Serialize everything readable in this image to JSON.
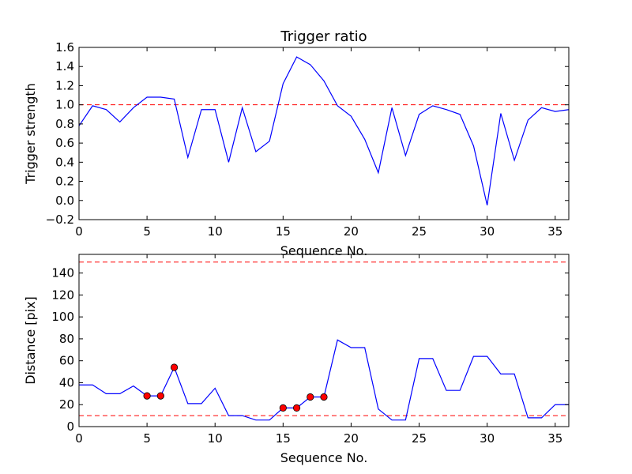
{
  "chart_data": [
    {
      "type": "line",
      "title": "Trigger ratio",
      "xlabel": "Sequence No.",
      "ylabel": "Trigger strength",
      "xlim": [
        0,
        36
      ],
      "ylim": [
        -0.2,
        1.6
      ],
      "xticks": [
        0,
        5,
        10,
        15,
        20,
        25,
        30,
        35
      ],
      "yticks": [
        -0.2,
        0.0,
        0.2,
        0.4,
        0.6,
        0.8,
        1.0,
        1.2,
        1.4,
        1.6
      ],
      "ytick_labels": [
        "−0.2",
        "0.0",
        "0.2",
        "0.4",
        "0.6",
        "0.8",
        "1.0",
        "1.2",
        "1.4",
        "1.6"
      ],
      "grid": false,
      "series": [
        {
          "color": "#0000ff",
          "x": [
            0,
            1,
            2,
            3,
            4,
            5,
            6,
            7,
            8,
            9,
            10,
            11,
            12,
            13,
            14,
            15,
            16,
            17,
            18,
            19,
            20,
            21,
            22,
            23,
            24,
            25,
            26,
            27,
            28,
            29,
            30,
            31,
            32,
            33,
            34,
            35,
            36
          ],
          "values": [
            0.78,
            0.99,
            0.95,
            0.82,
            0.97,
            1.08,
            1.08,
            1.06,
            0.45,
            0.95,
            0.95,
            0.4,
            0.97,
            0.51,
            0.62,
            1.22,
            1.5,
            1.42,
            1.25,
            0.99,
            0.88,
            0.64,
            0.29,
            0.97,
            0.47,
            0.9,
            0.99,
            0.95,
            0.9,
            0.57,
            -0.05,
            0.91,
            0.42,
            0.84,
            0.97,
            0.93,
            0.95
          ]
        }
      ],
      "hlines": [
        {
          "y": 1.0,
          "color": "#ff0000",
          "style": "dashed"
        }
      ]
    },
    {
      "type": "line",
      "title": "",
      "xlabel": "Sequence No.",
      "ylabel": "Distance [pix]",
      "xlim": [
        0,
        36
      ],
      "ylim": [
        0,
        157
      ],
      "xticks": [
        0,
        5,
        10,
        15,
        20,
        25,
        30,
        35
      ],
      "yticks": [
        0,
        20,
        40,
        60,
        80,
        100,
        120,
        140
      ],
      "grid": false,
      "series": [
        {
          "color": "#0000ff",
          "x": [
            0,
            1,
            2,
            3,
            4,
            5,
            6,
            7,
            8,
            9,
            10,
            11,
            12,
            13,
            14,
            15,
            16,
            17,
            18,
            19,
            20,
            21,
            22,
            23,
            24,
            25,
            26,
            27,
            28,
            29,
            30,
            31,
            32,
            33,
            34,
            35,
            36
          ],
          "values": [
            38,
            38,
            30,
            30,
            37,
            28,
            28,
            54,
            21,
            21,
            35,
            10,
            10,
            6,
            6,
            17,
            17,
            27,
            27,
            79,
            72,
            72,
            16,
            6,
            6,
            62,
            62,
            33,
            33,
            64,
            64,
            48,
            48,
            8,
            8,
            20,
            20
          ]
        }
      ],
      "markers": {
        "color": "#ff0000",
        "x": [
          5,
          6,
          7,
          15,
          16,
          17,
          18
        ],
        "values": [
          28,
          28,
          54,
          17,
          17,
          27,
          27
        ]
      },
      "hlines": [
        {
          "y": 150,
          "color": "#ff0000",
          "style": "dashed"
        },
        {
          "y": 10,
          "color": "#ff0000",
          "style": "dashed"
        }
      ]
    }
  ]
}
